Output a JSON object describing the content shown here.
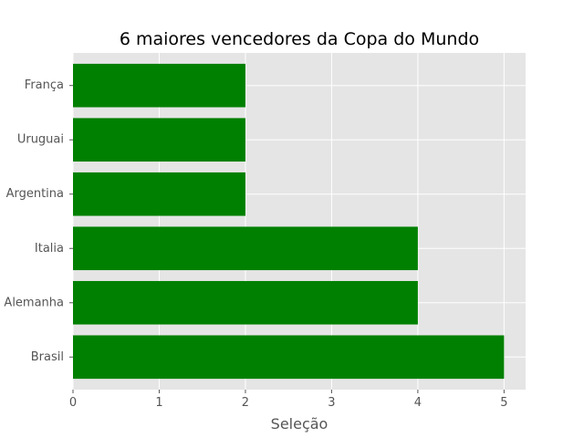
{
  "chart_data": {
    "type": "bar",
    "orientation": "horizontal",
    "title": "6 maiores vencedores da Copa do Mundo",
    "xlabel": "Seleção",
    "ylabel": "",
    "categories": [
      "Brasil",
      "Alemanha",
      "Italia",
      "Argentina",
      "Uruguai",
      "França"
    ],
    "values": [
      5,
      4,
      4,
      2,
      2,
      2
    ],
    "xlim": [
      0,
      5.25
    ],
    "xticks": [
      0,
      1,
      2,
      3,
      4,
      5
    ],
    "grid": true,
    "bar_color": "#008000",
    "background_color": "#e5e5e5",
    "grid_color": "#ffffff"
  }
}
